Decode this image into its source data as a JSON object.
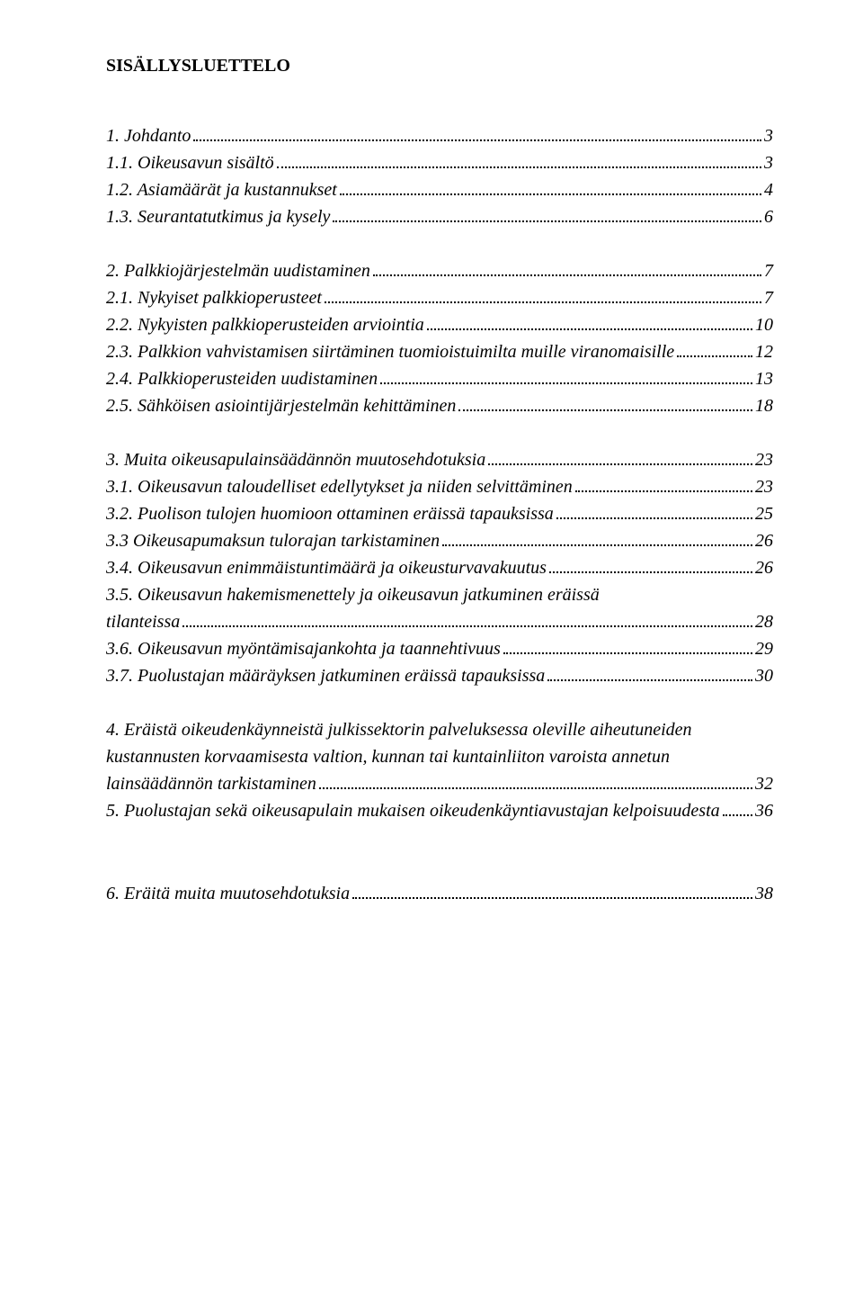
{
  "title": "SISÄLLYSLUETTELO",
  "toc": {
    "s1": {
      "label": "1. Johdanto",
      "page": "3"
    },
    "s1_1": {
      "label": "1.1. Oikeusavun sisältö",
      "page": "3"
    },
    "s1_2": {
      "label": "1.2. Asiamäärät ja kustannukset",
      "page": "4"
    },
    "s1_3": {
      "label": "1.3. Seurantatutkimus ja kysely",
      "page": "6"
    },
    "s2": {
      "label": "2. Palkkiojärjestelmän  uudistaminen",
      "page": "7"
    },
    "s2_1": {
      "label": "2.1. Nykyiset palkkioperusteet",
      "page": "7"
    },
    "s2_2": {
      "label": "2.2. Nykyisten palkkioperusteiden arviointia",
      "page": "10"
    },
    "s2_3": {
      "label": "2.3. Palkkion vahvistamisen siirtäminen tuomioistuimilta muille viranomaisille",
      "page": "12"
    },
    "s2_4": {
      "label": "2.4. Palkkioperusteiden uudistaminen",
      "page": "13"
    },
    "s2_5": {
      "label": "2.5. Sähköisen asiointijärjestelmän kehittäminen",
      "page": "18"
    },
    "s3": {
      "label": "3. Muita oikeusapulainsäädännön muutosehdotuksia",
      "page": "23"
    },
    "s3_1": {
      "label": "3.1. Oikeusavun taloudelliset edellytykset ja niiden selvittäminen",
      "page": "23"
    },
    "s3_2": {
      "label": "3.2. Puolison tulojen huomioon ottaminen eräissä tapauksissa",
      "page": "25"
    },
    "s3_3": {
      "label": "3.3 Oikeusapumaksun tulorajan tarkistaminen",
      "page": "26"
    },
    "s3_4": {
      "label": "3.4. Oikeusavun enimmäistuntimäärä ja oikeusturvavakuutus",
      "page": "26"
    },
    "s3_5a": {
      "text": "3.5. Oikeusavun hakemismenettely ja oikeusavun jatkuminen eräissä"
    },
    "s3_5b": {
      "label": "tilanteissa",
      "page": "28"
    },
    "s3_6": {
      "label": "3.6. Oikeusavun myöntämisajankohta ja taannehtivuus",
      "page": "29"
    },
    "s3_7": {
      "label": "3.7. Puolustajan määräyksen jatkuminen eräissä tapauksissa",
      "page": "30"
    },
    "s4a": {
      "text": "4. Eräistä oikeudenkäynneistä julkissektorin palveluksessa oleville aiheutuneiden"
    },
    "s4b": {
      "text": "kustannusten korvaamisesta valtion, kunnan tai kuntainliiton  varoista annetun"
    },
    "s4c": {
      "label": "lainsäädännön tarkistaminen",
      "page": "32"
    },
    "s5": {
      "label": "5. Puolustajan sekä oikeusapulain mukaisen oikeudenkäyntiavustajan kelpoisuudesta",
      "page": "36"
    },
    "s6": {
      "label": "6. Eräitä muita muutosehdotuksia",
      "page": "38"
    }
  }
}
